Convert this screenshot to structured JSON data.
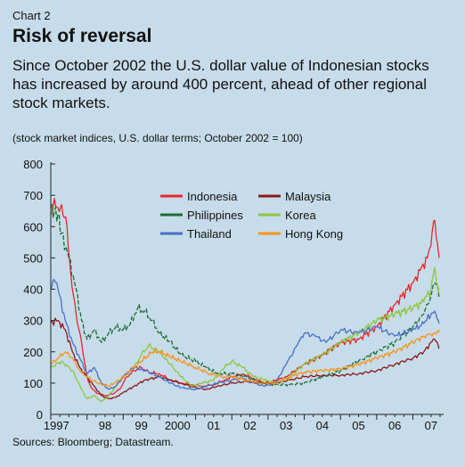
{
  "header": {
    "label": "Chart 2",
    "title": "Risk of reversal",
    "subtitle": "Since October 2002 the U.S. dollar value of Indonesian stocks has increased by around 400 percent, ahead of other regional stock markets.",
    "units": "(stock market indices, U.S. dollar terms; October 2002 = 100)"
  },
  "footer": {
    "source": "Sources: Bloomberg; Datastream."
  },
  "chart_data": {
    "type": "line",
    "title": "Risk of reversal",
    "xlabel": "",
    "ylabel": "",
    "ylim": [
      0,
      800
    ],
    "xlim": [
      1997.0,
      2007.75
    ],
    "yticks": [
      0,
      100,
      200,
      300,
      400,
      500,
      600,
      700,
      800
    ],
    "xticks": [
      {
        "label": "1997",
        "x": 1997.0
      },
      {
        "label": "98",
        "x": 1998.0
      },
      {
        "label": "99",
        "x": 1999.0
      },
      {
        "label": "2000",
        "x": 2000.0
      },
      {
        "label": "01",
        "x": 2001.0
      },
      {
        "label": "02",
        "x": 2002.0
      },
      {
        "label": "03",
        "x": 2003.0
      },
      {
        "label": "04",
        "x": 2004.0
      },
      {
        "label": "05",
        "x": 2005.0
      },
      {
        "label": "06",
        "x": 2006.0
      },
      {
        "label": "07",
        "x": 2007.0
      }
    ],
    "grid": false,
    "legend": "top-center, two columns",
    "series": [
      {
        "name": "Indonesia",
        "color": "#e8262c",
        "dash": "",
        "x": [
          1997.0,
          1997.1,
          1997.2,
          1997.3,
          1997.45,
          1997.55,
          1997.7,
          1997.85,
          1998.0,
          1998.1,
          1998.25,
          1998.5,
          1998.7,
          1998.9,
          1999.1,
          1999.3,
          1999.5,
          1999.7,
          2000.0,
          2000.3,
          2000.6,
          2000.9,
          2001.2,
          2001.5,
          2001.8,
          2002.0,
          2002.3,
          2002.6,
          2002.8,
          2003.0,
          2003.5,
          2004.0,
          2004.5,
          2005.0,
          2005.5,
          2006.0,
          2006.5,
          2007.0,
          2007.2,
          2007.4,
          2007.5,
          2007.55,
          2007.6,
          2007.65,
          2007.7,
          2007.72
        ],
        "y": [
          640,
          690,
          660,
          670,
          600,
          450,
          320,
          230,
          120,
          90,
          70,
          60,
          65,
          80,
          120,
          140,
          150,
          135,
          130,
          110,
          100,
          95,
          90,
          95,
          110,
          120,
          130,
          115,
          105,
          100,
          120,
          160,
          190,
          230,
          240,
          280,
          350,
          420,
          460,
          500,
          540,
          600,
          620,
          560,
          520,
          500
        ]
      },
      {
        "name": "Malaysia",
        "color": "#8b1a1a",
        "dash": "",
        "x": [
          1997.0,
          1997.2,
          1997.4,
          1997.6,
          1997.8,
          1998.0,
          1998.2,
          1998.4,
          1998.6,
          1998.8,
          1999.0,
          1999.3,
          1999.6,
          2000.0,
          2000.3,
          2000.6,
          2001.0,
          2001.3,
          2001.6,
          2002.0,
          2002.4,
          2002.8,
          2003.2,
          2003.6,
          2004.0,
          2004.5,
          2005.0,
          2005.5,
          2006.0,
          2006.5,
          2007.0,
          2007.3,
          2007.5,
          2007.6,
          2007.7,
          2007.72
        ],
        "y": [
          295,
          300,
          270,
          200,
          150,
          120,
          90,
          60,
          50,
          55,
          70,
          90,
          110,
          120,
          110,
          100,
          85,
          80,
          90,
          100,
          105,
          100,
          100,
          110,
          120,
          125,
          125,
          130,
          140,
          160,
          180,
          200,
          230,
          240,
          220,
          210
        ]
      },
      {
        "name": "Philippines",
        "color": "#1c6b33",
        "dash": "5,2",
        "x": [
          1997.0,
          1997.1,
          1997.2,
          1997.3,
          1997.5,
          1997.7,
          1997.85,
          1998.0,
          1998.2,
          1998.4,
          1998.6,
          1998.8,
          1999.0,
          1999.2,
          1999.4,
          1999.6,
          1999.8,
          2000.0,
          2000.3,
          2000.6,
          2001.0,
          2001.3,
          2001.6,
          2002.0,
          2002.4,
          2002.8,
          2003.2,
          2003.6,
          2004.0,
          2004.5,
          2005.0,
          2005.5,
          2006.0,
          2006.5,
          2007.0,
          2007.3,
          2007.5,
          2007.6,
          2007.7,
          2007.72
        ],
        "y": [
          660,
          650,
          640,
          580,
          500,
          400,
          300,
          240,
          270,
          230,
          260,
          280,
          270,
          290,
          340,
          330,
          300,
          260,
          230,
          190,
          170,
          150,
          130,
          130,
          120,
          100,
          95,
          95,
          100,
          120,
          140,
          170,
          200,
          230,
          280,
          320,
          380,
          420,
          400,
          370
        ]
      },
      {
        "name": "Korea",
        "color": "#8cc63f",
        "dash": "",
        "x": [
          1997.0,
          1997.3,
          1997.6,
          1997.85,
          1998.0,
          1998.2,
          1998.4,
          1998.6,
          1998.8,
          1999.0,
          1999.3,
          1999.5,
          1999.7,
          2000.0,
          2000.3,
          2000.6,
          2000.9,
          2001.2,
          2001.5,
          2001.8,
          2002.0,
          2002.3,
          2002.6,
          2002.9,
          2003.2,
          2003.6,
          2004.0,
          2004.5,
          2005.0,
          2005.5,
          2006.0,
          2006.5,
          2007.0,
          2007.3,
          2007.5,
          2007.6,
          2007.65,
          2007.7,
          2007.72
        ],
        "y": [
          150,
          170,
          140,
          80,
          50,
          60,
          40,
          60,
          90,
          120,
          150,
          190,
          220,
          200,
          160,
          120,
          90,
          100,
          110,
          150,
          170,
          150,
          120,
          110,
          100,
          120,
          160,
          190,
          230,
          260,
          300,
          320,
          340,
          360,
          400,
          470,
          420,
          390,
          400
        ]
      },
      {
        "name": "Thailand",
        "color": "#4a6fc4",
        "dash": "",
        "x": [
          1997.0,
          1997.1,
          1997.2,
          1997.4,
          1997.6,
          1997.8,
          1998.0,
          1998.2,
          1998.4,
          1998.6,
          1998.8,
          1999.0,
          1999.3,
          1999.6,
          2000.0,
          2000.3,
          2000.6,
          2001.0,
          2001.3,
          2001.6,
          2002.0,
          2002.3,
          2002.6,
          2002.9,
          2003.2,
          2003.5,
          2003.8,
          2004.0,
          2004.3,
          2004.6,
          2005.0,
          2005.5,
          2006.0,
          2006.5,
          2007.0,
          2007.3,
          2007.5,
          2007.6,
          2007.7,
          2007.72
        ],
        "y": [
          400,
          430,
          400,
          300,
          230,
          180,
          130,
          150,
          100,
          80,
          90,
          120,
          150,
          140,
          120,
          100,
          85,
          80,
          90,
          100,
          110,
          115,
          100,
          90,
          100,
          160,
          220,
          260,
          250,
          230,
          270,
          260,
          280,
          250,
          270,
          290,
          320,
          330,
          300,
          290
        ]
      },
      {
        "name": "Hong Kong",
        "color": "#f7941d",
        "dash": "",
        "x": [
          1997.0,
          1997.2,
          1997.4,
          1997.6,
          1997.8,
          1998.0,
          1998.3,
          1998.6,
          1998.9,
          1999.2,
          1999.5,
          1999.8,
          2000.0,
          2000.3,
          2000.6,
          2001.0,
          2001.4,
          2001.8,
          2002.0,
          2002.4,
          2002.8,
          2003.2,
          2003.6,
          2004.0,
          2004.5,
          2005.0,
          2005.5,
          2006.0,
          2006.5,
          2007.0,
          2007.3,
          2007.5,
          2007.6,
          2007.7,
          2007.72
        ],
        "y": [
          160,
          180,
          200,
          180,
          140,
          120,
          100,
          90,
          110,
          140,
          170,
          200,
          200,
          185,
          170,
          150,
          130,
          120,
          120,
          110,
          100,
          100,
          120,
          135,
          140,
          145,
          160,
          180,
          200,
          230,
          250,
          255,
          260,
          265,
          270
        ]
      }
    ]
  }
}
